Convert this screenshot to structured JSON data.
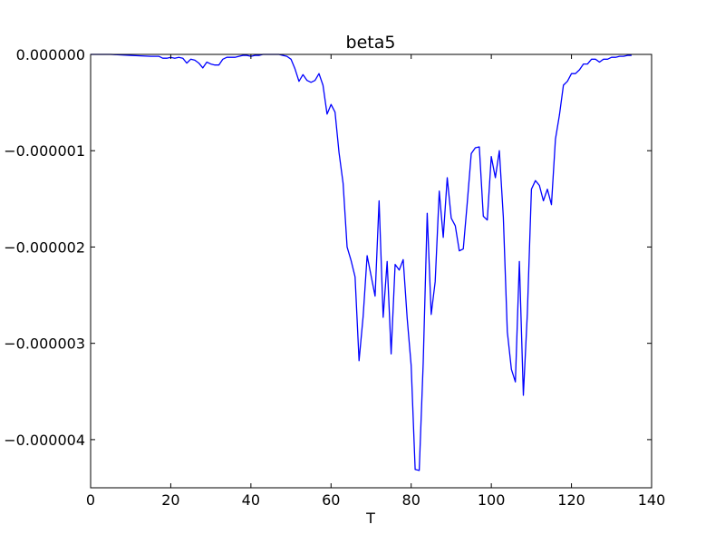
{
  "chart_data": {
    "type": "line",
    "title": "beta5",
    "xlabel": "T",
    "ylabel": "",
    "xlim": [
      0,
      140
    ],
    "ylim": [
      -4.5e-06,
      0
    ],
    "xticks": [
      0,
      20,
      40,
      60,
      80,
      100,
      120,
      140
    ],
    "xtick_labels": [
      "0",
      "20",
      "40",
      "60",
      "80",
      "100",
      "120",
      "140"
    ],
    "yticks": [
      0,
      -1e-06,
      -2e-06,
      -3e-06,
      -4e-06
    ],
    "ytick_labels": [
      "0.000000",
      "−0.000001",
      "−0.000002",
      "−0.000003",
      "−0.000004"
    ],
    "grid": false,
    "line_color": "#0000ff",
    "series": [
      {
        "x": [
          0,
          5,
          10,
          15,
          17,
          18,
          19,
          20,
          21,
          22,
          23,
          24,
          25,
          26,
          27,
          28,
          29,
          30,
          31,
          32,
          33,
          34,
          35,
          36,
          37,
          38,
          39,
          40,
          41,
          42,
          43,
          44,
          45,
          46,
          47,
          48,
          49,
          50,
          51,
          52,
          53,
          54,
          55,
          56,
          57,
          58,
          59,
          60,
          61,
          62,
          63,
          64,
          65,
          66,
          67,
          68,
          69,
          70,
          71,
          72,
          73,
          74,
          75,
          76,
          77,
          78,
          79,
          80,
          81,
          82,
          83,
          84,
          85,
          86,
          87,
          88,
          89,
          90,
          91,
          92,
          93,
          94,
          95,
          96,
          97,
          98,
          99,
          100,
          101,
          102,
          103,
          104,
          105,
          106,
          107,
          108,
          109,
          110,
          111,
          112,
          113,
          114,
          115,
          116,
          117,
          118,
          119,
          120,
          121,
          122,
          123,
          124,
          125,
          126,
          127,
          128,
          129,
          130,
          131,
          132,
          133,
          134,
          135
        ],
        "y": [
          0,
          0,
          -1e-08,
          -2e-08,
          -2e-08,
          -4e-08,
          -4e-08,
          -3e-08,
          -4e-08,
          -3e-08,
          -4e-08,
          -9e-08,
          -5e-08,
          -6e-08,
          -9e-08,
          -1.4e-07,
          -8e-08,
          -1e-07,
          -1.1e-07,
          -1.1e-07,
          -5e-08,
          -3e-08,
          -3e-08,
          -3e-08,
          -2e-08,
          -1e-08,
          -1e-08,
          -2e-08,
          -1e-08,
          -1e-08,
          0,
          0,
          0,
          0,
          0,
          -1e-08,
          -2e-08,
          -5e-08,
          -1.5e-07,
          -2.8e-07,
          -2.1e-07,
          -2.7e-07,
          -2.9e-07,
          -2.7e-07,
          -2e-07,
          -3.2e-07,
          -6.2e-07,
          -5.2e-07,
          -6e-07,
          -1.02e-06,
          -1.34e-06,
          -2e-06,
          -2.14e-06,
          -2.31e-06,
          -3.18e-06,
          -2.72e-06,
          -2.09e-06,
          -2.3e-06,
          -2.51e-06,
          -1.52e-06,
          -2.73e-06,
          -2.15e-06,
          -3.11e-06,
          -2.18e-06,
          -2.24e-06,
          -2.13e-06,
          -2.74e-06,
          -3.23e-06,
          -4.31e-06,
          -4.32e-06,
          -3.2e-06,
          -1.65e-06,
          -2.7e-06,
          -2.36e-06,
          -1.42e-06,
          -1.9e-06,
          -1.28e-06,
          -1.7e-06,
          -1.78e-06,
          -2.04e-06,
          -2.02e-06,
          -1.54e-06,
          -1.03e-06,
          -9.7e-07,
          -9.6e-07,
          -1.68e-06,
          -1.72e-06,
          -1.06e-06,
          -1.28e-06,
          -1e-06,
          -1.69e-06,
          -2.88e-06,
          -3.27e-06,
          -3.4e-06,
          -2.15e-06,
          -3.54e-06,
          -2.69e-06,
          -1.4e-06,
          -1.31e-06,
          -1.36e-06,
          -1.52e-06,
          -1.4e-06,
          -1.56e-06,
          -8.8e-07,
          -6.3e-07,
          -3.2e-07,
          -2.8e-07,
          -2e-07,
          -2e-07,
          -1.6e-07,
          -1e-07,
          -1e-07,
          -5e-08,
          -5e-08,
          -8e-08,
          -5e-08,
          -5e-08,
          -3e-08,
          -3e-08,
          -2e-08,
          -2e-08,
          -1e-08,
          -1e-08
        ]
      }
    ]
  }
}
